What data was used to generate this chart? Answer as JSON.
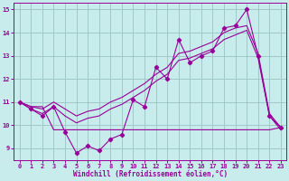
{
  "xlabel": "Windchill (Refroidissement éolien,°C)",
  "background_color": "#c8ecec",
  "grid_color": "#a0c8c8",
  "line_color": "#990099",
  "xlim": [
    -0.5,
    23.5
  ],
  "ylim": [
    8.5,
    15.3
  ],
  "yticks": [
    9,
    10,
    11,
    12,
    13,
    14,
    15
  ],
  "xticks": [
    0,
    1,
    2,
    3,
    4,
    5,
    6,
    7,
    8,
    9,
    10,
    11,
    12,
    13,
    14,
    15,
    16,
    17,
    18,
    19,
    20,
    21,
    22,
    23
  ],
  "hours": [
    0,
    1,
    2,
    3,
    4,
    5,
    6,
    7,
    8,
    9,
    10,
    11,
    12,
    13,
    14,
    15,
    16,
    17,
    18,
    19,
    20,
    21,
    22,
    23
  ],
  "temp_line": [
    11.0,
    10.7,
    10.4,
    10.8,
    9.7,
    8.8,
    9.1,
    8.9,
    9.4,
    9.6,
    11.1,
    10.8,
    12.5,
    12.0,
    13.7,
    12.7,
    13.0,
    13.2,
    14.2,
    14.3,
    15.0,
    13.0,
    10.4,
    9.9
  ],
  "smooth_upper": [
    11.0,
    10.8,
    10.7,
    11.0,
    10.7,
    10.4,
    10.6,
    10.7,
    11.0,
    11.2,
    11.5,
    11.8,
    12.2,
    12.5,
    13.1,
    13.2,
    13.4,
    13.6,
    14.0,
    14.2,
    14.3,
    13.1,
    10.5,
    9.9
  ],
  "smooth_lower": [
    11.0,
    10.7,
    10.5,
    10.8,
    10.4,
    10.1,
    10.3,
    10.4,
    10.7,
    10.9,
    11.2,
    11.5,
    11.9,
    12.2,
    12.8,
    12.9,
    13.1,
    13.3,
    13.7,
    13.9,
    14.1,
    12.9,
    10.4,
    9.8
  ],
  "flat_line_x": [
    0,
    1,
    2,
    3,
    9,
    22,
    23
  ],
  "flat_line_y": [
    11.0,
    10.8,
    10.8,
    9.8,
    9.8,
    9.8,
    9.9
  ]
}
